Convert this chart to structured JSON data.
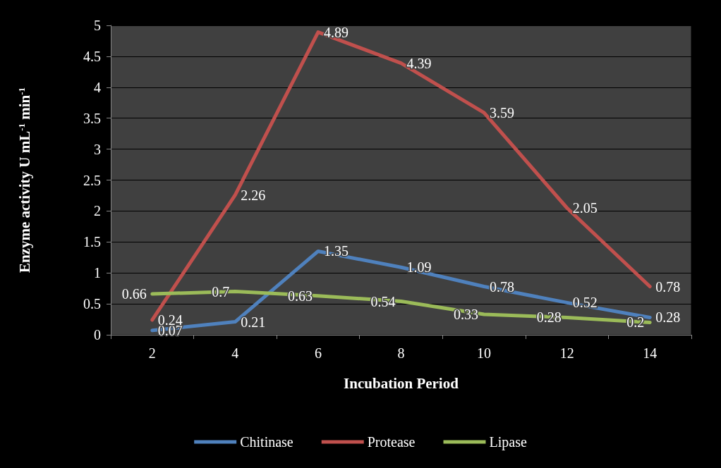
{
  "chart_data": {
    "type": "line",
    "xlabel": "Incubation Period",
    "ylabel": "Enzyme activity U mL$^{-1}$ min$^{-1}$",
    "categories": [
      "2",
      "4",
      "6",
      "8",
      "10",
      "12",
      "14"
    ],
    "series": [
      {
        "name": "Chitinase",
        "color": "#4f81bd",
        "values": [
          0.07,
          0.21,
          1.35,
          1.09,
          0.78,
          0.52,
          0.28
        ]
      },
      {
        "name": "Protease",
        "color": "#c0504d",
        "values": [
          0.24,
          2.26,
          4.89,
          4.39,
          3.59,
          2.05,
          0.78
        ]
      },
      {
        "name": "Lipase",
        "color": "#9bbb59",
        "values": [
          0.66,
          0.7,
          0.63,
          0.54,
          0.33,
          0.28,
          0.2
        ]
      }
    ],
    "ylim": [
      0,
      5
    ],
    "yticks": [
      0,
      0.5,
      1,
      1.5,
      2,
      2.5,
      3,
      3.5,
      4,
      4.5,
      5
    ],
    "grid": "y",
    "legend": "bottom",
    "marker": "none",
    "line_style": "solid",
    "data_labels": true
  }
}
